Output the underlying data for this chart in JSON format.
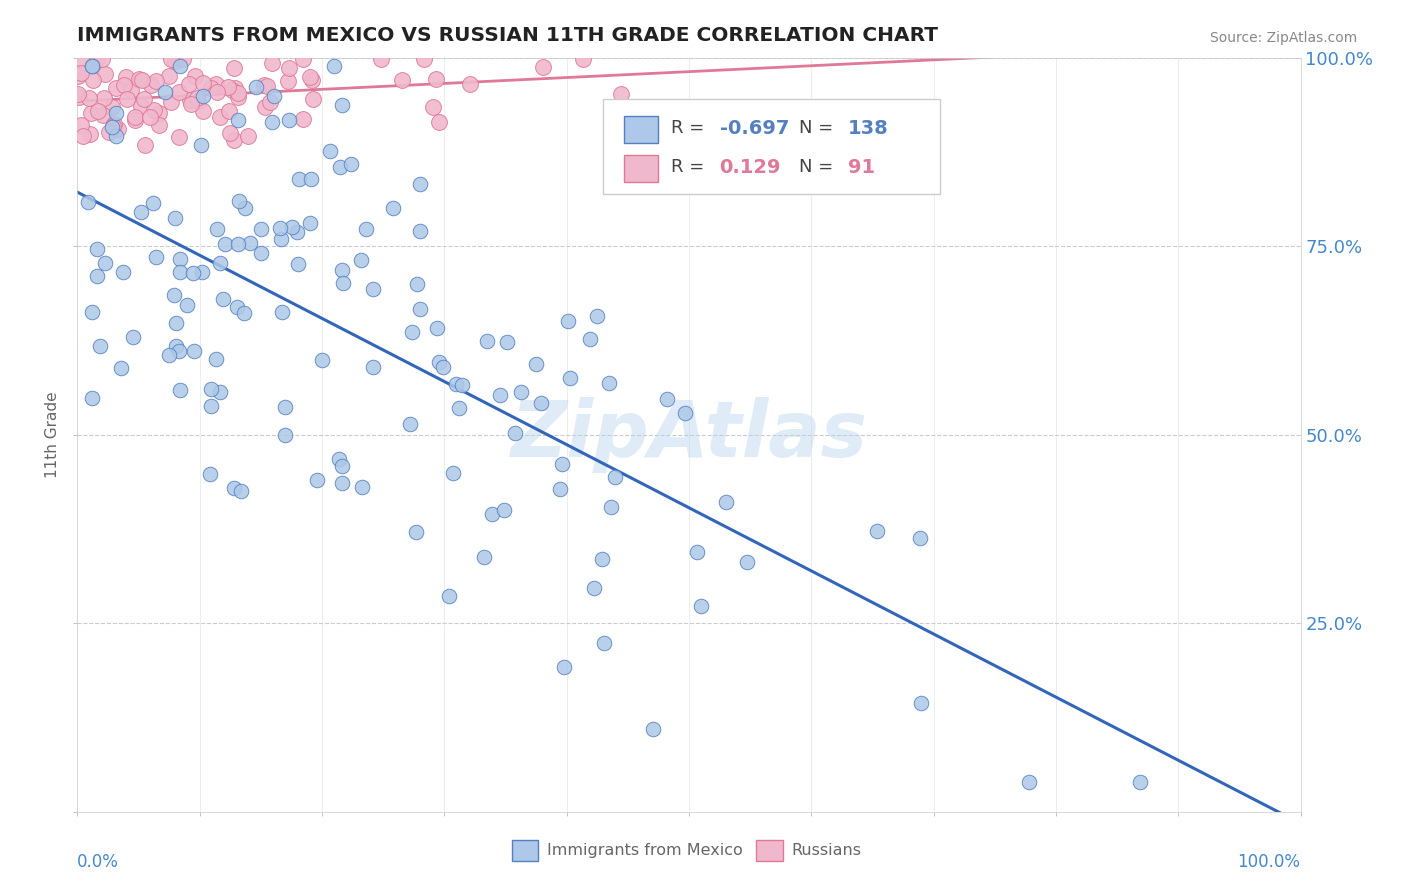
{
  "title": "IMMIGRANTS FROM MEXICO VS RUSSIAN 11TH GRADE CORRELATION CHART",
  "source": "Source: ZipAtlas.com",
  "ylabel": "11th Grade",
  "legend_blue_R": "-0.697",
  "legend_blue_N": "138",
  "legend_pink_R": "0.129",
  "legend_pink_N": "91",
  "blue_fill": "#adc8e8",
  "blue_edge": "#5580c0",
  "pink_fill": "#f0b8cc",
  "pink_edge": "#e07898",
  "blue_line_color": "#3366bb",
  "pink_line_color": "#e07898",
  "watermark": "ZipAtlas",
  "background_color": "#ffffff",
  "grid_color": "#cccccc",
  "title_color": "#222222",
  "axis_label_color": "#4488cc",
  "seed": 7
}
